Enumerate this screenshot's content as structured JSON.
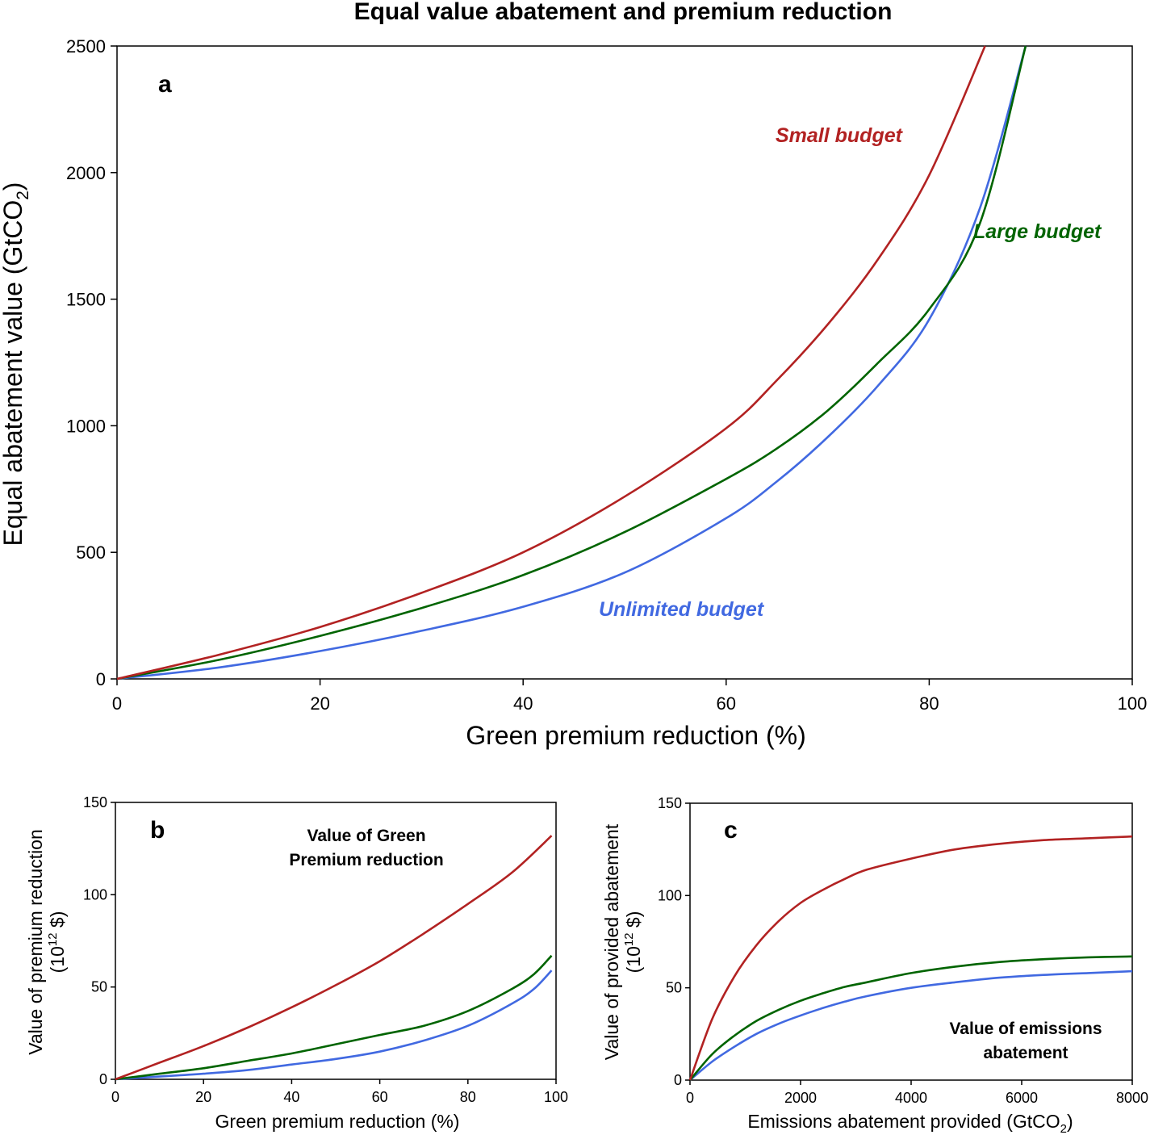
{
  "title": "Equal value abatement and premium reduction",
  "colors": {
    "small": "#b22222",
    "large": "#006400",
    "unlimited": "#4169e1"
  },
  "panels": {
    "a": {
      "letter": "a",
      "ylabel_main": "Equal abatement value (GtCO",
      "ylabel_sub": "2",
      "ylabel_end": ")",
      "xlabel": "Green premium reduction (%)",
      "series_labels": {
        "small": "Small budget",
        "large": "Large budget",
        "unlimited": "Unlimited budget"
      }
    },
    "b": {
      "letter": "b",
      "annotation_line1": "Value of Green",
      "annotation_line2": "Premium reduction",
      "ylabel_line1": "Value of premium reduction",
      "ylabel_line2_a": "(10",
      "ylabel_line2_sup": "12",
      "ylabel_line2_b": " $)",
      "xlabel": "Green premium reduction (%)"
    },
    "c": {
      "letter": "c",
      "annotation_line1": "Value of emissions",
      "annotation_line2": "abatement",
      "ylabel_line1": "Value of provided abatement",
      "ylabel_line2_a": "(10",
      "ylabel_line2_sup": "12",
      "ylabel_line2_b": " $)",
      "xlabel_main": "Emissions abatement provided (GtCO",
      "xlabel_sub": "2",
      "xlabel_end": ")"
    }
  },
  "chart_data": [
    {
      "panel": "a",
      "type": "line",
      "xlim": [
        0,
        100
      ],
      "ylim": [
        0,
        2500
      ],
      "xticks": [
        0,
        20,
        40,
        60,
        80,
        100
      ],
      "yticks": [
        0,
        500,
        1000,
        1500,
        2000,
        2500
      ],
      "grid": false,
      "series": [
        {
          "key": "small",
          "name": "Small budget",
          "x": [
            0,
            10,
            20,
            30,
            40,
            50,
            60,
            65,
            70,
            75,
            80,
            85.5
          ],
          "y": [
            0,
            95,
            205,
            340,
            500,
            720,
            990,
            1180,
            1400,
            1660,
            1990,
            2500
          ]
        },
        {
          "key": "large",
          "name": "Large budget",
          "x": [
            0,
            10,
            20,
            30,
            40,
            50,
            60,
            65,
            70,
            75,
            80,
            85,
            89.5
          ],
          "y": [
            0,
            75,
            170,
            280,
            410,
            580,
            790,
            910,
            1060,
            1250,
            1460,
            1800,
            2500
          ]
        },
        {
          "key": "unlimited",
          "name": "Unlimited budget",
          "x": [
            0,
            10,
            20,
            30,
            40,
            50,
            60,
            65,
            70,
            75,
            80,
            85,
            89.5
          ],
          "y": [
            0,
            45,
            110,
            190,
            285,
            420,
            635,
            780,
            955,
            1160,
            1420,
            1860,
            2500
          ]
        }
      ]
    },
    {
      "panel": "b",
      "type": "line",
      "xlim": [
        0,
        100
      ],
      "ylim": [
        0,
        150
      ],
      "xticks": [
        0,
        20,
        40,
        60,
        80,
        100
      ],
      "yticks": [
        0,
        50,
        100,
        150
      ],
      "grid": false,
      "series": [
        {
          "key": "small",
          "x": [
            0,
            10,
            20,
            30,
            40,
            50,
            60,
            70,
            80,
            90,
            99
          ],
          "y": [
            0,
            9,
            18,
            28,
            39,
            51,
            64,
            79,
            95,
            112,
            132
          ]
        },
        {
          "key": "large",
          "x": [
            0,
            10,
            20,
            30,
            40,
            50,
            60,
            70,
            80,
            90,
            95,
            99
          ],
          "y": [
            0,
            3,
            6,
            10,
            14,
            19,
            24,
            29,
            37,
            49,
            57,
            67
          ]
        },
        {
          "key": "unlimited",
          "x": [
            0,
            10,
            20,
            30,
            40,
            50,
            60,
            70,
            80,
            90,
            95,
            99
          ],
          "y": [
            0,
            1.5,
            3,
            5,
            8,
            11,
            15,
            21,
            29,
            41,
            49,
            59
          ]
        }
      ]
    },
    {
      "panel": "c",
      "type": "line",
      "xlim": [
        0,
        8000
      ],
      "ylim": [
        0,
        150
      ],
      "xticks": [
        0,
        2000,
        4000,
        6000,
        8000
      ],
      "yticks": [
        0,
        50,
        100,
        150
      ],
      "grid": false,
      "series": [
        {
          "key": "small",
          "x": [
            0,
            400,
            800,
            1200,
            1600,
            2000,
            2400,
            2800,
            3200,
            4000,
            4800,
            5600,
            6400,
            7200,
            8000
          ],
          "y": [
            0,
            33,
            56,
            73,
            86,
            96,
            103,
            109,
            114,
            120,
            125,
            128,
            130,
            131,
            132
          ]
        },
        {
          "key": "large",
          "x": [
            0,
            400,
            800,
            1200,
            1600,
            2000,
            2400,
            2800,
            3200,
            4000,
            4800,
            5600,
            6400,
            7200,
            8000
          ],
          "y": [
            0,
            14,
            24,
            32,
            38,
            43,
            47,
            50.5,
            53,
            58,
            61.5,
            64,
            65.5,
            66.5,
            67
          ]
        },
        {
          "key": "unlimited",
          "x": [
            0,
            400,
            800,
            1200,
            1600,
            2000,
            2400,
            2800,
            3200,
            4000,
            4800,
            5600,
            6400,
            7200,
            8000
          ],
          "y": [
            0,
            10,
            18,
            25,
            30.5,
            35,
            39,
            42.5,
            45.5,
            50,
            53,
            55.5,
            57,
            58,
            59
          ]
        }
      ]
    }
  ]
}
